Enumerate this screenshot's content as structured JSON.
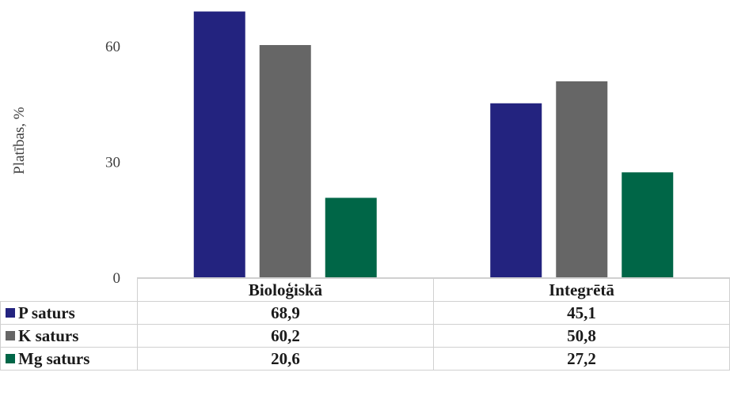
{
  "chart_data": {
    "type": "bar",
    "categories": [
      "Bioloģiskā",
      "Integrētā"
    ],
    "series": [
      {
        "name": "P saturs",
        "values": [
          68.9,
          45.1
        ],
        "color": "#23237f",
        "values_text": [
          "68,9",
          "45,1"
        ]
      },
      {
        "name": "K saturs",
        "values": [
          60.2,
          50.8
        ],
        "color": "#666666",
        "values_text": [
          "60,2",
          "50,8"
        ]
      },
      {
        "name": "Mg saturs",
        "values": [
          20.6,
          27.2
        ],
        "color": "#006647",
        "values_text": [
          "20,6",
          "27,2"
        ]
      }
    ],
    "ylabel": "Platības, %",
    "ylim": [
      0,
      70
    ],
    "yticks": [
      0,
      30,
      60
    ],
    "ytick_labels": [
      "0",
      "30",
      "60"
    ],
    "grid": false,
    "legend": "data table"
  }
}
